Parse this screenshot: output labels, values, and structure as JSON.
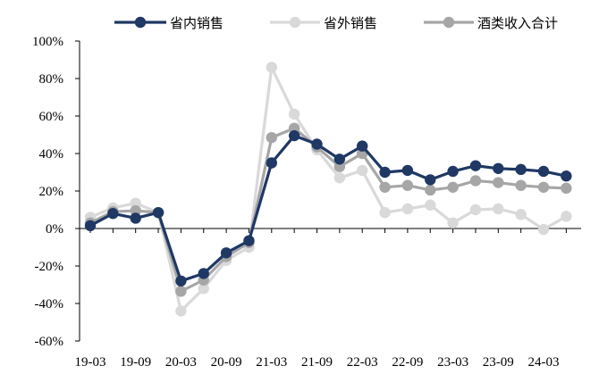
{
  "chart_data": {
    "type": "line",
    "title": "",
    "xlabel": "",
    "ylabel": "",
    "ylim": [
      -60,
      100
    ],
    "y_ticks": [
      "100%",
      "80%",
      "60%",
      "40%",
      "20%",
      "0%",
      "-20%",
      "-40%",
      "-60%"
    ],
    "x_tick_labels": [
      "19-03",
      "19-09",
      "20-03",
      "20-09",
      "21-03",
      "21-09",
      "22-03",
      "22-09",
      "23-03",
      "23-09",
      "24-03"
    ],
    "categories": [
      "19-03",
      "19-06",
      "19-09",
      "19-12",
      "20-03",
      "20-06",
      "20-09",
      "20-12",
      "21-03",
      "21-06",
      "21-09",
      "21-12",
      "22-03",
      "22-06",
      "22-09",
      "22-12",
      "23-03",
      "23-06",
      "23-09",
      "23-12",
      "24-03",
      "24-06"
    ],
    "legend_position": "top",
    "grid": false,
    "series": [
      {
        "name": "省内销售",
        "color": "#1f3864",
        "values": [
          1.5,
          8,
          5.5,
          8.5,
          -28,
          -24,
          -13,
          -6.5,
          35,
          49.5,
          45,
          37,
          44,
          30,
          31,
          26,
          30.5,
          33.5,
          32,
          31.5,
          30.5,
          28
        ]
      },
      {
        "name": "省外销售",
        "color": "#d9d9d9",
        "values": [
          6,
          11,
          13.5,
          8.5,
          -44,
          -32,
          -17,
          -10,
          86,
          61,
          42,
          27,
          31,
          8.5,
          10.5,
          12.5,
          3,
          10,
          10.5,
          7.5,
          -0.5,
          6.5
        ]
      },
      {
        "name": "酒类收入合计",
        "color": "#a6a6a6",
        "values": [
          3,
          9,
          9.5,
          8.5,
          -33.5,
          -27.5,
          -15,
          -7.5,
          48.5,
          53.5,
          43.5,
          33,
          40,
          22,
          23,
          20.5,
          22,
          25.5,
          24.5,
          23,
          22,
          21.5
        ]
      }
    ]
  }
}
